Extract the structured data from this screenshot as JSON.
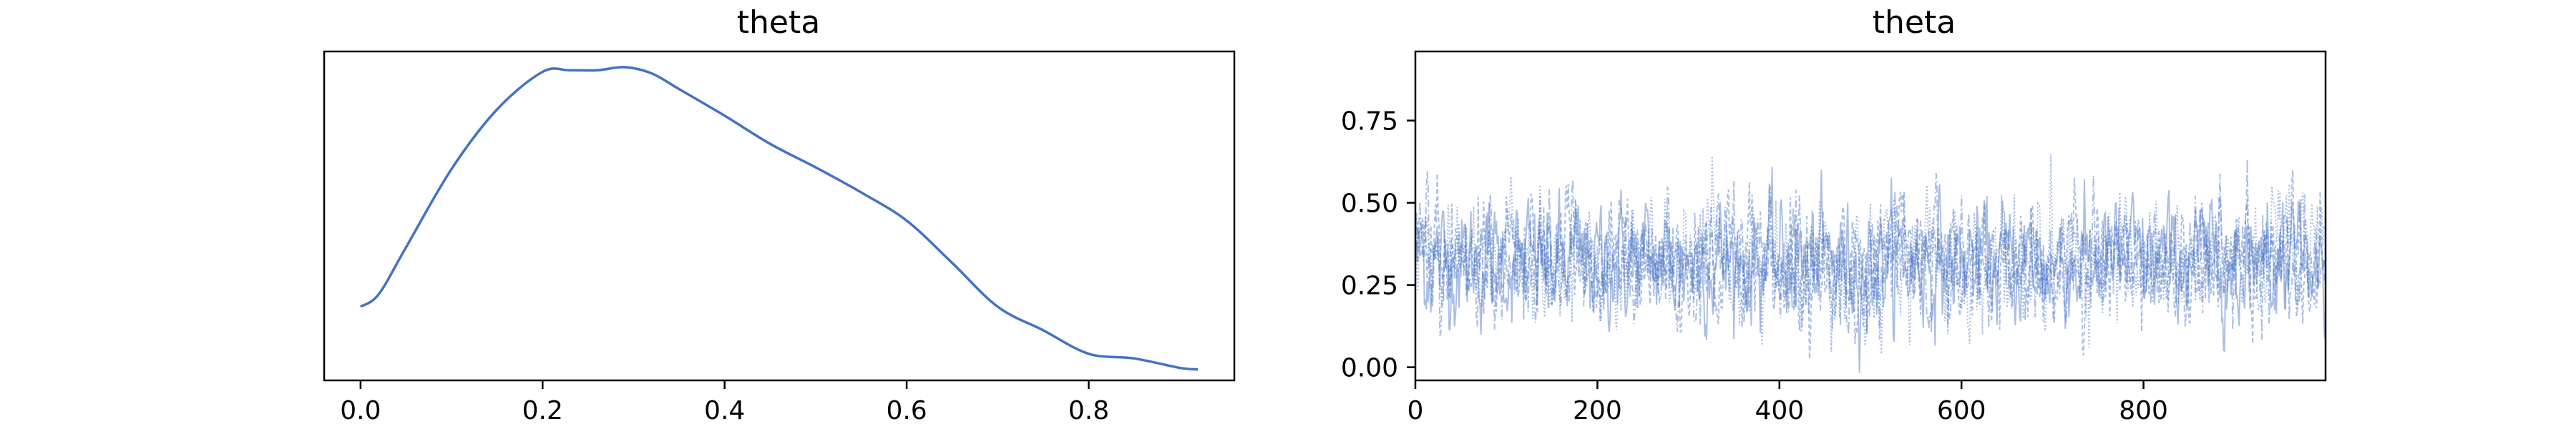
{
  "chart_data": [
    {
      "type": "line",
      "title": "theta",
      "xlabel": "",
      "ylabel": "",
      "xlim": [
        -0.04,
        0.96
      ],
      "ylim": [
        0.0,
        2.1
      ],
      "x_ticks": [
        "0.0",
        "0.2",
        "0.4",
        "0.6",
        "0.8"
      ],
      "y_ticks": [],
      "grid": false,
      "legend": "none",
      "series": [
        {
          "color": "#4472c4",
          "x": [
            0.0,
            0.02,
            0.05,
            0.1,
            0.15,
            0.2,
            0.23,
            0.26,
            0.29,
            0.32,
            0.35,
            0.4,
            0.45,
            0.5,
            0.55,
            0.6,
            0.65,
            0.7,
            0.75,
            0.8,
            0.85,
            0.9,
            0.92
          ],
          "values": [
            0.47,
            0.55,
            0.85,
            1.35,
            1.73,
            1.97,
            1.98,
            1.98,
            2.0,
            1.96,
            1.86,
            1.69,
            1.51,
            1.36,
            1.2,
            1.02,
            0.75,
            0.47,
            0.32,
            0.17,
            0.14,
            0.08,
            0.07
          ]
        }
      ]
    },
    {
      "type": "line",
      "title": "theta",
      "xlabel": "",
      "ylabel": "",
      "xlim": [
        0,
        1000
      ],
      "ylim": [
        -0.04,
        0.96
      ],
      "x_ticks": [
        "0",
        "200",
        "400",
        "600",
        "800"
      ],
      "y_ticks": [
        "0.00",
        "0.25",
        "0.50",
        "0.75"
      ],
      "grid": false,
      "legend": "none",
      "chains": 4,
      "draws_per_chain": 1000,
      "center": 0.32,
      "spread": 0.17,
      "series_color": "#4472c4"
    }
  ]
}
